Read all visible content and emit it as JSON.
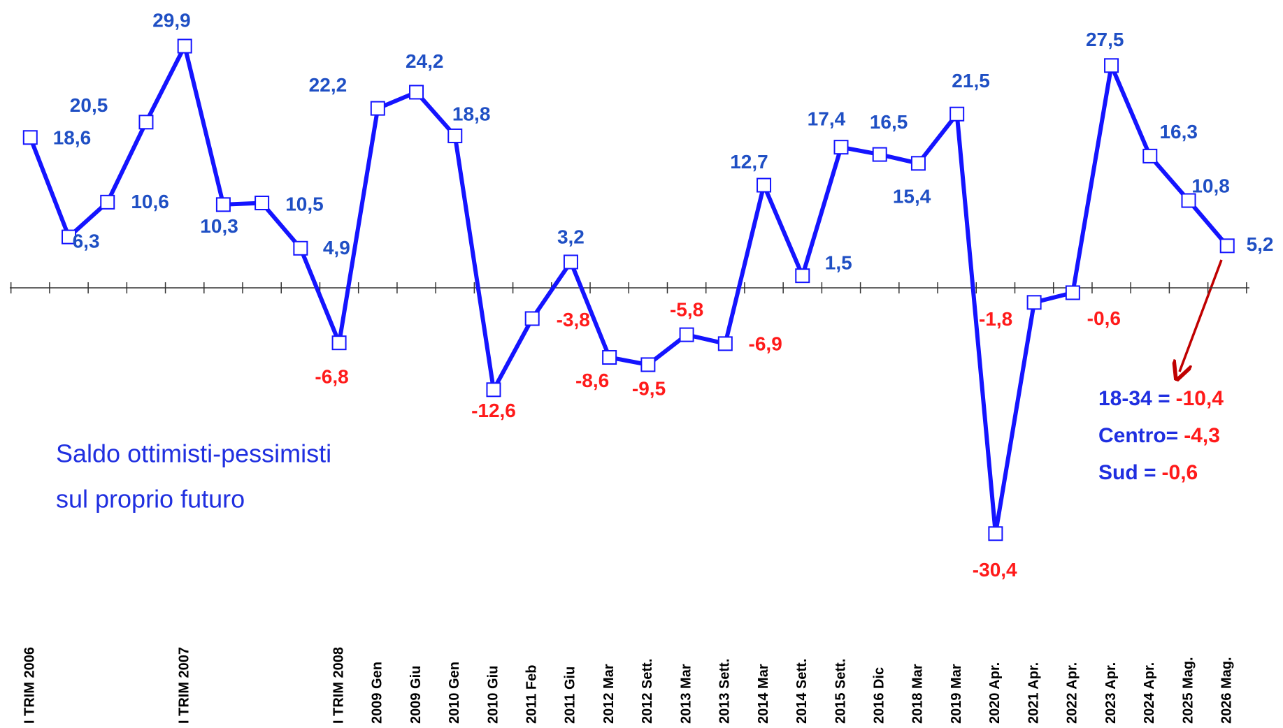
{
  "chart_data": {
    "type": "line",
    "categories": [
      "I TRIM 2006",
      null,
      null,
      null,
      "I TRIM 2007",
      null,
      null,
      null,
      "I TRIM 2008",
      "2009 Gen",
      "2009 Giu",
      "2010 Gen",
      "2010 Giu",
      "2011 Feb",
      "2011 Giu",
      "2012 Mar",
      "2012 Sett.",
      "2013 Mar",
      "2013 Sett.",
      "2014 Mar",
      "2014 Sett.",
      "2015 Sett.",
      "2016 Dic",
      "2018 Mar",
      "2019 Mar",
      "2020 Apr.",
      "2021 Apr.",
      "2022 Apr.",
      "2023 Apr.",
      "2024 Apr.",
      "2025 Mag.",
      "2026 Mag."
    ],
    "values": [
      18.6,
      6.3,
      10.6,
      20.5,
      29.9,
      10.3,
      10.5,
      4.9,
      -6.8,
      22.2,
      24.2,
      18.8,
      -12.6,
      -3.8,
      3.2,
      -8.6,
      -9.5,
      -5.8,
      -6.9,
      12.7,
      1.5,
      17.4,
      16.5,
      15.4,
      21.5,
      -30.4,
      -1.8,
      -0.6,
      27.5,
      16.3,
      10.8,
      5.2
    ],
    "value_labels": [
      "18,6",
      "6,3",
      "10,6",
      "20,5",
      "29,9",
      "10,3",
      "10,5",
      "4,9",
      "-6,8",
      "22,2",
      "24,2",
      "18,8",
      "-12,6",
      "-3,8",
      "3,2",
      "-8,6",
      "-9,5",
      "-5,8",
      "-6,9",
      "12,7",
      "1,5",
      "17,4",
      "16,5",
      "15,4",
      "21,5",
      "-30,4",
      "-1,8",
      "-0,6",
      "27,5",
      "16,3",
      "10,8",
      "5,2"
    ],
    "color": "#1414ff",
    "label_color": "#1f4fc4",
    "negative_label_color": "#ff1a1a",
    "ylim": [
      -35,
      35
    ],
    "note": [
      "Saldo ottimisti-pessimisti",
      "sul proprio futuro"
    ],
    "breakdown": [
      {
        "label": "18-34 =",
        "value": "-10,4"
      },
      {
        "label": "Centro=",
        "value": "-4,3"
      },
      {
        "label": "Sud =",
        "value": "-0,6"
      }
    ]
  }
}
